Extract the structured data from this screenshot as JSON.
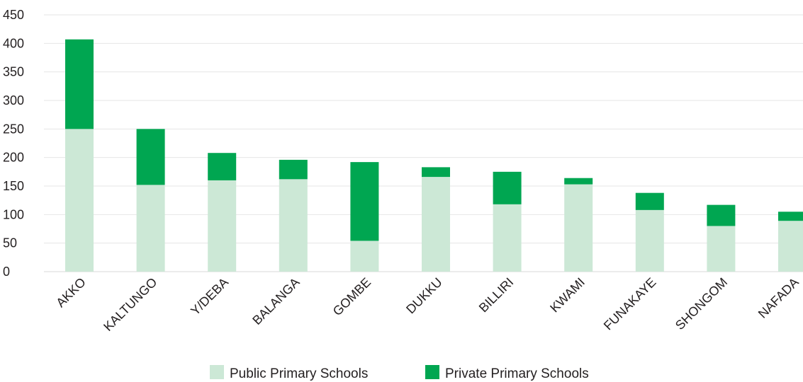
{
  "chart_data": {
    "type": "bar",
    "stacked": true,
    "categories": [
      "AKKO",
      "KALTUNGO",
      "Y/DEBA",
      "BALANGA",
      "GOMBE",
      "DUKKU",
      "BILLIRI",
      "KWAMI",
      "FUNAKAYE",
      "SHONGOM",
      "NAFADA"
    ],
    "series": [
      {
        "name": "Public Primary Schools",
        "color": "#cce8d6",
        "values": [
          250,
          152,
          160,
          162,
          54,
          166,
          118,
          153,
          108,
          80,
          89
        ]
      },
      {
        "name": "Private Primary Schools",
        "color": "#00a651",
        "values": [
          157,
          98,
          48,
          34,
          138,
          17,
          57,
          11,
          30,
          37,
          16
        ]
      }
    ],
    "ylim": [
      0,
      450
    ],
    "yticks": [
      "0",
      "50",
      "100",
      "150",
      "200",
      "250",
      "300",
      "350",
      "400",
      "450"
    ],
    "grid": true,
    "legend_position": "bottom"
  }
}
